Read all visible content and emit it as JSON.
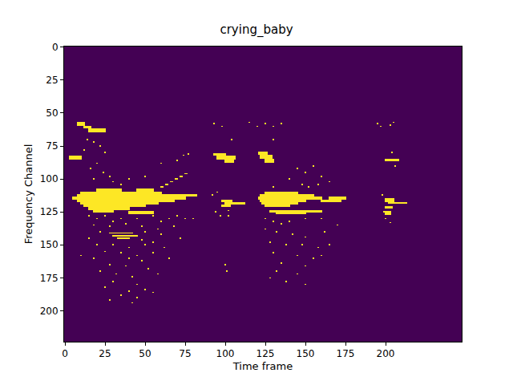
{
  "chart_data": {
    "type": "heatmap",
    "title": "crying_baby",
    "x_label": "Time frame",
    "y_label": "Frequency Channel",
    "xlim": [
      -0.5,
      247.5
    ],
    "ylim": [
      223.5,
      -0.5
    ],
    "xticks": [
      0,
      25,
      50,
      75,
      100,
      125,
      150,
      175,
      200
    ],
    "yticks": [
      0,
      25,
      50,
      75,
      100,
      125,
      150,
      175,
      200
    ],
    "zlim": [
      0,
      1
    ],
    "colors": [
      "#440154",
      "#fde725"
    ],
    "cells": {
      "shape": [
        224,
        248
      ],
      "blocks": [
        [
          8,
          12,
          57,
          59
        ],
        [
          12,
          16,
          60,
          61
        ],
        [
          15,
          25,
          62,
          64
        ],
        [
          3,
          10,
          83,
          85
        ],
        [
          20,
          35,
          108,
          109
        ],
        [
          45,
          55,
          108,
          109
        ],
        [
          10,
          60,
          110,
          111
        ],
        [
          8,
          82,
          112,
          113
        ],
        [
          5,
          75,
          114,
          115
        ],
        [
          8,
          68,
          116,
          117
        ],
        [
          10,
          58,
          118,
          119
        ],
        [
          12,
          50,
          120,
          121
        ],
        [
          15,
          40,
          122,
          123
        ],
        [
          18,
          30,
          124,
          125
        ],
        [
          40,
          55,
          125,
          126
        ],
        [
          28,
          42,
          141,
          141
        ],
        [
          30,
          45,
          143,
          143
        ],
        [
          33,
          40,
          145,
          145
        ],
        [
          60,
          61,
          106,
          106
        ],
        [
          63,
          64,
          104,
          104
        ],
        [
          66,
          67,
          102,
          102
        ],
        [
          69,
          70,
          100,
          100
        ],
        [
          72,
          73,
          98,
          98
        ],
        [
          75,
          76,
          96,
          96
        ],
        [
          93,
          100,
          81,
          82
        ],
        [
          95,
          106,
          83,
          85
        ],
        [
          100,
          105,
          86,
          87
        ],
        [
          98,
          104,
          116,
          117
        ],
        [
          100,
          112,
          118,
          119
        ],
        [
          98,
          103,
          120,
          121
        ],
        [
          121,
          126,
          80,
          81
        ],
        [
          122,
          129,
          82,
          84
        ],
        [
          125,
          130,
          85,
          87
        ],
        [
          125,
          145,
          110,
          111
        ],
        [
          122,
          155,
          112,
          113
        ],
        [
          121,
          160,
          114,
          115
        ],
        [
          165,
          175,
          114,
          115
        ],
        [
          122,
          150,
          116,
          117
        ],
        [
          160,
          172,
          116,
          117
        ],
        [
          123,
          145,
          118,
          119
        ],
        [
          125,
          140,
          120,
          121
        ],
        [
          128,
          160,
          124,
          125
        ],
        [
          132,
          150,
          126,
          126
        ],
        [
          200,
          208,
          85,
          86
        ],
        [
          200,
          205,
          115,
          117
        ],
        [
          202,
          213,
          118,
          118
        ],
        [
          200,
          204,
          121,
          122
        ],
        [
          200,
          203,
          125,
          127
        ]
      ],
      "dots": [
        [
          14,
          70
        ],
        [
          18,
          72
        ],
        [
          22,
          75
        ],
        [
          12,
          78
        ],
        [
          25,
          80
        ],
        [
          20,
          88
        ],
        [
          16,
          92
        ],
        [
          24,
          95
        ],
        [
          28,
          98
        ],
        [
          18,
          100
        ],
        [
          30,
          102
        ],
        [
          35,
          104
        ],
        [
          40,
          100
        ],
        [
          50,
          98
        ],
        [
          70,
          86
        ],
        [
          74,
          82
        ],
        [
          77,
          81
        ],
        [
          60,
          88
        ],
        [
          15,
          128
        ],
        [
          20,
          130
        ],
        [
          25,
          128
        ],
        [
          30,
          132
        ],
        [
          35,
          130
        ],
        [
          45,
          130
        ],
        [
          55,
          128
        ],
        [
          60,
          132
        ],
        [
          65,
          130
        ],
        [
          70,
          128
        ],
        [
          75,
          130
        ],
        [
          18,
          135
        ],
        [
          28,
          136
        ],
        [
          38,
          134
        ],
        [
          48,
          136
        ],
        [
          58,
          138
        ],
        [
          68,
          136
        ],
        [
          22,
          140
        ],
        [
          50,
          140
        ],
        [
          60,
          142
        ],
        [
          15,
          145
        ],
        [
          48,
          146
        ],
        [
          55,
          148
        ],
        [
          20,
          150
        ],
        [
          30,
          150
        ],
        [
          40,
          152
        ],
        [
          50,
          150
        ],
        [
          62,
          152
        ],
        [
          25,
          155
        ],
        [
          35,
          156
        ],
        [
          45,
          158
        ],
        [
          55,
          156
        ],
        [
          18,
          160
        ],
        [
          40,
          160
        ],
        [
          48,
          162
        ],
        [
          28,
          165
        ],
        [
          38,
          166
        ],
        [
          52,
          168
        ],
        [
          22,
          170
        ],
        [
          32,
          172
        ],
        [
          42,
          174
        ],
        [
          58,
          172
        ],
        [
          30,
          178
        ],
        [
          45,
          180
        ],
        [
          25,
          182
        ],
        [
          40,
          185
        ],
        [
          50,
          184
        ],
        [
          35,
          188
        ],
        [
          45,
          190
        ],
        [
          28,
          192
        ],
        [
          42,
          194
        ],
        [
          55,
          186
        ],
        [
          10,
          158
        ],
        [
          65,
          160
        ],
        [
          72,
          145
        ],
        [
          80,
          130
        ],
        [
          93,
          58
        ],
        [
          98,
          60
        ],
        [
          104,
          70
        ],
        [
          92,
          112
        ],
        [
          95,
          110
        ],
        [
          94,
          125
        ],
        [
          97,
          128
        ],
        [
          102,
          128
        ],
        [
          100,
          165
        ],
        [
          101,
          170
        ],
        [
          102,
          124
        ],
        [
          115,
          57
        ],
        [
          120,
          60
        ],
        [
          125,
          58
        ],
        [
          130,
          60
        ],
        [
          135,
          58
        ],
        [
          130,
          70
        ],
        [
          145,
          92
        ],
        [
          150,
          95
        ],
        [
          155,
          90
        ],
        [
          160,
          98
        ],
        [
          140,
          100
        ],
        [
          148,
          104
        ],
        [
          152,
          106
        ],
        [
          158,
          104
        ],
        [
          165,
          102
        ],
        [
          130,
          106
        ],
        [
          125,
          130
        ],
        [
          130,
          132
        ],
        [
          135,
          134
        ],
        [
          140,
          132
        ],
        [
          150,
          130
        ],
        [
          160,
          130
        ],
        [
          125,
          138
        ],
        [
          132,
          140
        ],
        [
          142,
          142
        ],
        [
          150,
          144
        ],
        [
          162,
          140
        ],
        [
          128,
          148
        ],
        [
          138,
          150
        ],
        [
          148,
          150
        ],
        [
          158,
          152
        ],
        [
          130,
          156
        ],
        [
          145,
          158
        ],
        [
          155,
          160
        ],
        [
          135,
          164
        ],
        [
          150,
          166
        ],
        [
          160,
          158
        ],
        [
          132,
          170
        ],
        [
          145,
          172
        ],
        [
          138,
          178
        ],
        [
          150,
          180
        ],
        [
          128,
          175
        ],
        [
          165,
          150
        ],
        [
          170,
          135
        ],
        [
          195,
          58
        ],
        [
          197,
          60
        ],
        [
          203,
          59
        ],
        [
          205,
          57
        ],
        [
          204,
          80
        ],
        [
          206,
          90
        ],
        [
          198,
          112
        ],
        [
          200,
          130
        ],
        [
          203,
          133
        ],
        [
          199,
          125
        ]
      ]
    }
  }
}
